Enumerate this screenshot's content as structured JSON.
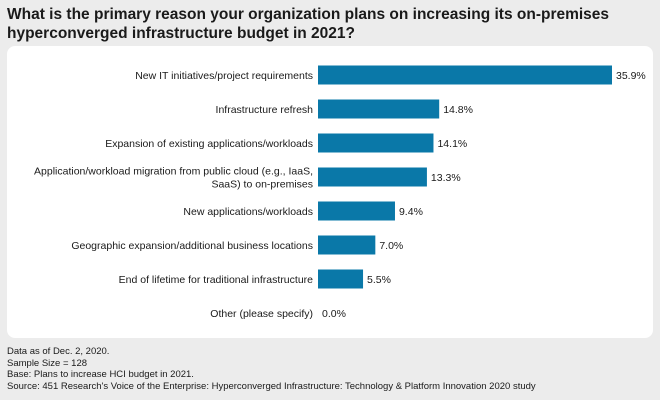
{
  "title": "What is the primary reason your organization plans on increasing its on-premises hyperconverged infrastructure budget in 2021?",
  "colors": {
    "bar": "#0a78a8",
    "panel": "#ffffff",
    "background": "#ececec"
  },
  "chart_data": {
    "type": "bar",
    "orientation": "horizontal",
    "categories": [
      [
        "New IT initiatives/project requirements"
      ],
      [
        "Infrastructure refresh"
      ],
      [
        "Expansion of existing applications/workloads"
      ],
      [
        "Application/workload migration from public cloud (e.g., IaaS,",
        "SaaS) to on-premises"
      ],
      [
        "New applications/workloads"
      ],
      [
        "Geographic expansion/additional business locations"
      ],
      [
        "End of lifetime for traditional infrastructure"
      ],
      [
        "Other (please specify)"
      ]
    ],
    "values": [
      35.9,
      14.8,
      14.1,
      13.3,
      9.4,
      7.0,
      5.5,
      0.0
    ],
    "value_labels": [
      "35.9%",
      "14.8%",
      "14.1%",
      "13.3%",
      "9.4%",
      "7.0%",
      "5.5%",
      "0.0%"
    ],
    "xlim": [
      0,
      35.9
    ],
    "grid": false,
    "legend": "none"
  },
  "notes": [
    "Data as of Dec. 2, 2020.",
    "Sample Size = 128",
    "Base: Plans to increase HCI budget in 2021.",
    "Source: 451 Research's Voice of the Enterprise: Hyperconverged Infrastructure: Technology & Platform Innovation 2020 study"
  ]
}
